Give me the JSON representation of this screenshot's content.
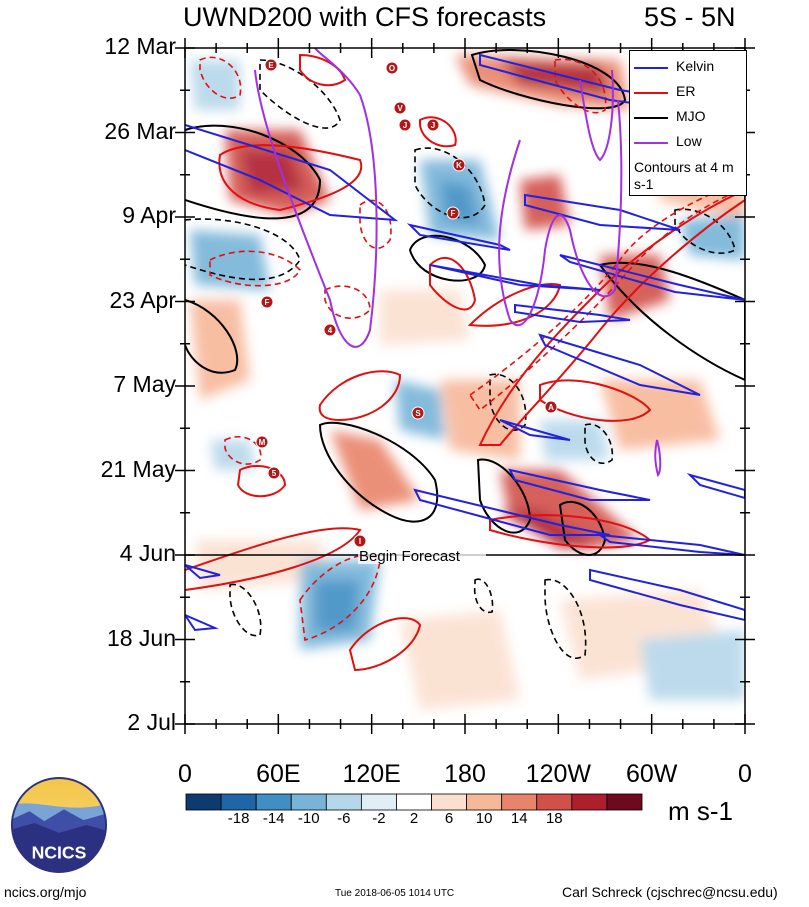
{
  "title_left": "UWND200 with CFS forecasts",
  "title_right": "5S - 5N",
  "chart_data": {
    "type": "heatmap",
    "title": "UWND200 with CFS forecasts",
    "region": "5S - 5N",
    "y_ticks": [
      "12 Mar",
      "26 Mar",
      "9 Apr",
      "23 Apr",
      "7 May",
      "21 May",
      "4 Jun",
      "18 Jun",
      "2 Jul"
    ],
    "x_ticks": [
      "0",
      "60E",
      "120E",
      "180",
      "120W",
      "60W",
      "0"
    ],
    "xlim": [
      0,
      360
    ],
    "ylim": [
      "12 Mar",
      "2 Jul"
    ],
    "forecast_line_date": "4 Jun",
    "forecast_label": "Begin Forecast",
    "colorbar": {
      "labels": [
        "-18",
        "-14",
        "-10",
        "-6",
        "-2",
        "2",
        "6",
        "10",
        "14",
        "18"
      ],
      "colors": [
        "#0b3b70",
        "#1f66a8",
        "#3f8fc5",
        "#77b4d8",
        "#b5d7ea",
        "#e0eef6",
        "#ffffff",
        "#fbe0d0",
        "#f7b799",
        "#e9846a",
        "#d2504a",
        "#ae1f2e",
        "#6e0a1c"
      ],
      "units": "m s-1"
    },
    "legend": [
      {
        "name": "Kelvin",
        "color": "#2222dd"
      },
      {
        "name": "ER",
        "color": "#e01010"
      },
      {
        "name": "MJO",
        "color": "#000000"
      },
      {
        "name": "Low",
        "color": "#a030e0"
      }
    ],
    "legend_note": "Contours at 4 m s-1",
    "storms": [
      "E",
      "O",
      "V",
      "J",
      "J",
      "K",
      "F",
      "F",
      "4",
      "S",
      "M",
      "5",
      "I",
      "A"
    ]
  },
  "footer": {
    "site": "ncics.org/mjo",
    "timestamp": "Tue 2018-06-05 1014 UTC",
    "author": "Carl Schreck (cjschrec@ncsu.edu)",
    "logo_text": "NCICS"
  }
}
